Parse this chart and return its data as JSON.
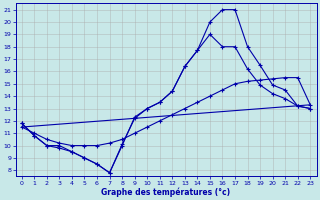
{
  "background_color": "#c8e8e8",
  "line_color": "#0000aa",
  "grid_color": "#aaaaaa",
  "xlabel": "Graphe des températures (°c)",
  "xlim": [
    -0.5,
    23.5
  ],
  "ylim": [
    7.5,
    21.5
  ],
  "xticks": [
    0,
    1,
    2,
    3,
    4,
    5,
    6,
    7,
    8,
    9,
    10,
    11,
    12,
    13,
    14,
    15,
    16,
    17,
    18,
    19,
    20,
    21,
    22,
    23
  ],
  "yticks": [
    8,
    9,
    10,
    11,
    12,
    13,
    14,
    15,
    16,
    17,
    18,
    19,
    20,
    21
  ],
  "curve1_x": [
    0,
    1,
    2,
    3,
    4,
    5,
    6,
    7,
    8,
    9,
    10,
    11,
    12,
    13,
    14,
    15,
    16,
    17,
    18,
    19,
    20,
    21,
    22,
    23
  ],
  "curve1_y": [
    11.8,
    10.8,
    10.0,
    9.8,
    9.5,
    9.0,
    8.5,
    7.8,
    10.0,
    12.3,
    13.0,
    13.5,
    14.4,
    16.4,
    17.7,
    20.0,
    21.0,
    21.0,
    18.0,
    16.5,
    14.9,
    14.5,
    13.2,
    13.0
  ],
  "curve2_x": [
    0,
    1,
    2,
    3,
    4,
    5,
    6,
    7,
    8,
    9,
    10,
    11,
    12,
    13,
    14,
    15,
    16,
    17,
    18,
    19,
    20,
    21,
    22,
    23
  ],
  "curve2_y": [
    11.8,
    10.8,
    10.0,
    10.0,
    9.5,
    9.0,
    8.5,
    7.8,
    10.1,
    12.2,
    13.0,
    13.5,
    14.4,
    16.4,
    17.7,
    19.0,
    18.0,
    18.0,
    16.2,
    14.9,
    14.2,
    13.8,
    13.2,
    13.0
  ],
  "curve3_x": [
    0,
    1,
    2,
    3,
    4,
    5,
    6,
    7,
    8,
    9,
    10,
    11,
    12,
    13,
    14,
    15,
    16,
    17,
    18,
    19,
    20,
    21,
    22,
    23
  ],
  "curve3_y": [
    11.5,
    11.0,
    10.5,
    10.2,
    10.0,
    10.0,
    10.0,
    10.2,
    10.5,
    11.0,
    11.5,
    12.0,
    12.5,
    13.0,
    13.5,
    14.0,
    14.5,
    15.0,
    15.2,
    15.3,
    15.4,
    15.5,
    15.5,
    13.3
  ],
  "curve4_x": [
    0,
    23
  ],
  "curve4_y": [
    11.5,
    13.3
  ]
}
